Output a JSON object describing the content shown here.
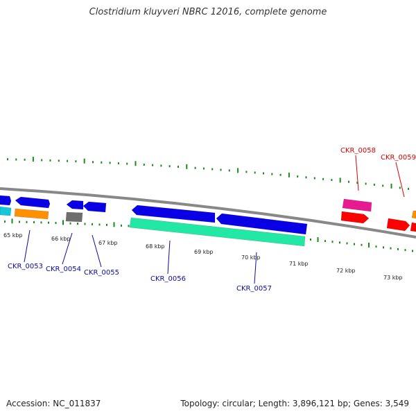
{
  "title": "Clostridium kluyveri NBRC 12016, complete genome",
  "footer": {
    "accession": "Accession: NC_011837",
    "summary": "Topology: circular; Length: 3,896,121 bp; Genes: 3,549"
  },
  "colors": {
    "blue_gene": "#0a00e6",
    "teal_gene": "#22e8a6",
    "orange_gene": "#ff9000",
    "gray_gene": "#6e6e6e",
    "cyan_gene": "#14c8d8",
    "magenta_gene": "#e81a90",
    "red_gene": "#ff0000",
    "tick": "#1e8a1e",
    "backbone": "#888888",
    "label_blue": "#0a0aa0",
    "label_red": "#d80000"
  },
  "scale_labels": [
    {
      "text": "65 kbp"
    },
    {
      "text": "66 kbp"
    },
    {
      "text": "67 kbp"
    },
    {
      "text": "68 kbp"
    },
    {
      "text": "69 kbp"
    },
    {
      "text": "70 kbp"
    },
    {
      "text": "71 kbp"
    },
    {
      "text": "72 kbp"
    },
    {
      "text": "73 kbp"
    }
  ],
  "gene_labels": [
    {
      "text": "CKR_0053",
      "color": "blue"
    },
    {
      "text": "CKR_0054",
      "color": "blue"
    },
    {
      "text": "CKR_0055",
      "color": "blue"
    },
    {
      "text": "CKR_0056",
      "color": "blue"
    },
    {
      "text": "CKR_0057",
      "color": "blue"
    },
    {
      "text": "CKR_0058",
      "color": "red"
    },
    {
      "text": "CKR_0059",
      "color": "red"
    }
  ]
}
